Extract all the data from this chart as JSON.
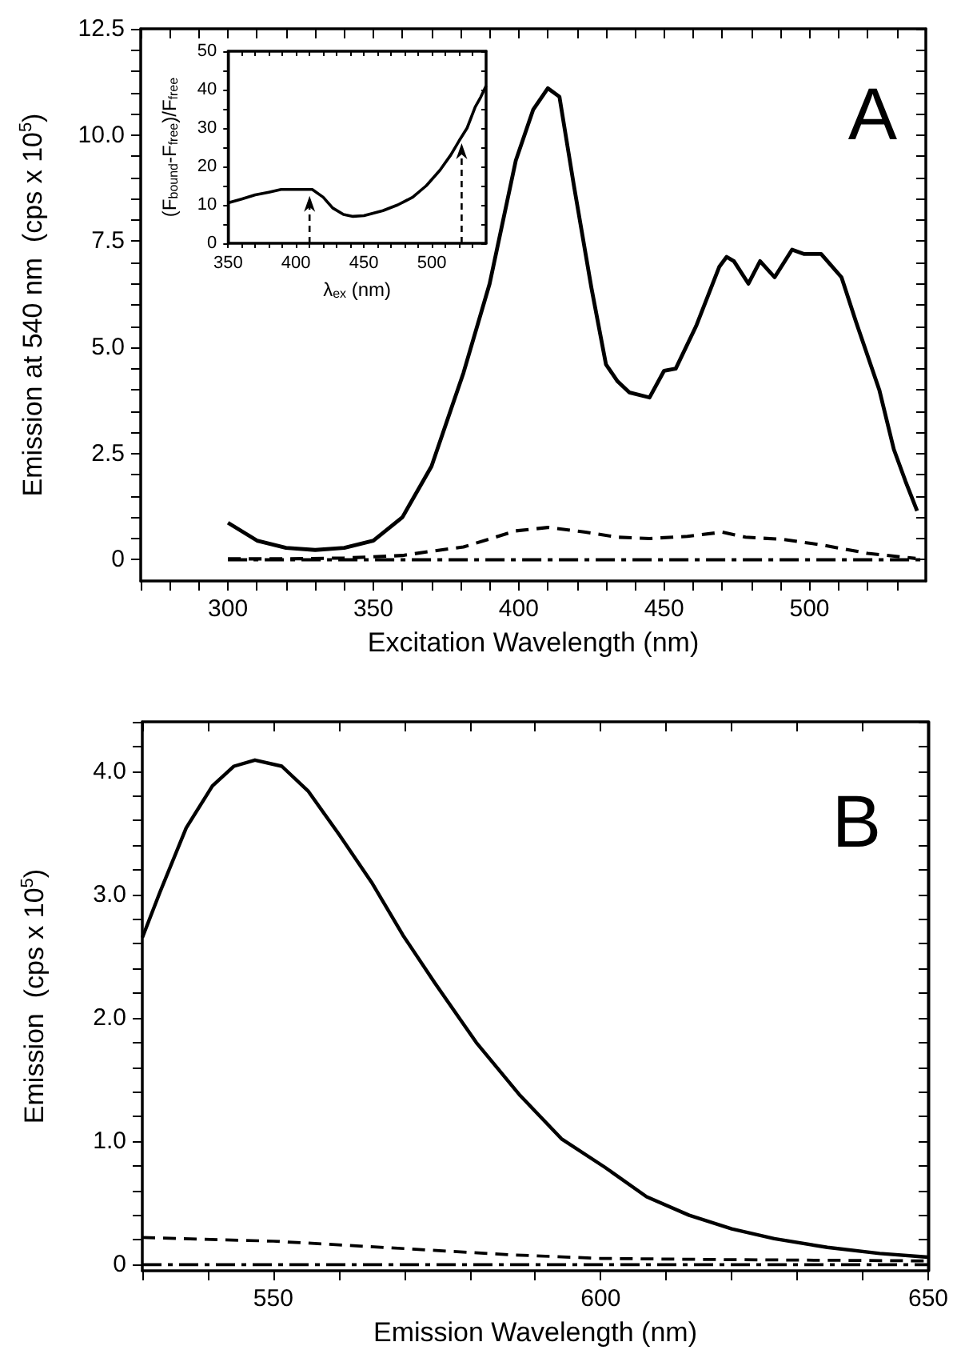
{
  "chart_data": [
    {
      "type": "line",
      "xlabel": "Excitation Wavelength (nm)",
      "ylabel": "Emission at 540 nm  (cps x 10$^{5}$)",
      "annotations": [
        "A"
      ],
      "marker": "none",
      "xlim": [
        270,
        540
      ],
      "ylim": [
        -0.5,
        12.5
      ],
      "xticks": [
        {
          "value": 270,
          "label": null
        },
        {
          "value": 280,
          "label": null
        },
        {
          "value": 290,
          "label": null
        },
        300,
        {
          "value": 310,
          "label": null
        },
        {
          "value": 320,
          "label": null
        },
        {
          "value": 330,
          "label": null
        },
        {
          "value": 340,
          "label": null
        },
        350,
        {
          "value": 360,
          "label": null
        },
        {
          "value": 370,
          "label": null
        },
        {
          "value": 380,
          "label": null
        },
        {
          "value": 390,
          "label": null
        },
        400,
        {
          "value": 410,
          "label": null
        },
        {
          "value": 420,
          "label": null
        },
        {
          "value": 430,
          "label": null
        },
        {
          "value": 440,
          "label": null
        },
        450,
        {
          "value": 460,
          "label": null
        },
        {
          "value": 470,
          "label": null
        },
        {
          "value": 480,
          "label": null
        },
        {
          "value": 490,
          "label": null
        },
        500,
        {
          "value": 510,
          "label": null
        },
        {
          "value": 520,
          "label": null
        },
        {
          "value": 530,
          "label": null
        }
      ],
      "yticks": [
        0,
        {
          "value": 0.5,
          "label": null
        },
        {
          "value": 1,
          "label": null
        },
        {
          "value": 1.5,
          "label": null
        },
        {
          "value": 2,
          "label": null
        },
        2.5,
        {
          "value": 3,
          "label": null
        },
        {
          "value": 3.5,
          "label": null
        },
        {
          "value": 4,
          "label": null
        },
        {
          "value": 4.5,
          "label": null
        },
        {
          "value": 5,
          "label": "5.0"
        },
        {
          "value": 5.5,
          "label": null
        },
        {
          "value": 6,
          "label": null
        },
        {
          "value": 6.5,
          "label": null
        },
        {
          "value": 7,
          "label": null
        },
        7.5,
        {
          "value": 8,
          "label": null
        },
        {
          "value": 8.5,
          "label": null
        },
        {
          "value": 9,
          "label": null
        },
        {
          "value": 9.5,
          "label": null
        },
        {
          "value": 10,
          "label": "10.0"
        },
        {
          "value": 10.5,
          "label": null
        },
        {
          "value": 11,
          "label": null
        },
        {
          "value": 11.5,
          "label": null
        },
        {
          "value": 12,
          "label": null
        },
        12.5
      ],
      "series": [
        {
          "color": "#000000",
          "line_style": "solid",
          "x": [
            300,
            310,
            320,
            330,
            340,
            350,
            360,
            370,
            381,
            390,
            399,
            405,
            410,
            414,
            419,
            425,
            430,
            434,
            438,
            445,
            450,
            454,
            461,
            469,
            471.5,
            474,
            479,
            483,
            488,
            494,
            498,
            504,
            511,
            516,
            524,
            529,
            533,
            537
          ],
          "values": [
            0.87,
            0.45,
            0.28,
            0.23,
            0.28,
            0.45,
            1.0,
            2.2,
            4.4,
            6.5,
            9.4,
            10.6,
            11.1,
            10.9,
            8.8,
            6.4,
            4.6,
            4.2,
            3.94,
            3.82,
            4.45,
            4.5,
            5.5,
            6.9,
            7.13,
            7.03,
            6.5,
            7.03,
            6.65,
            7.3,
            7.2,
            7.2,
            6.65,
            5.6,
            4.0,
            2.6,
            1.85,
            1.15
          ]
        },
        {
          "color": "#000000",
          "line_style": "dashed",
          "x": [
            300,
            320,
            340,
            360,
            370,
            381,
            399,
            410,
            423,
            434,
            445,
            458,
            470,
            478,
            491,
            505,
            520,
            536.5
          ],
          "values": [
            0.02,
            0.02,
            0.04,
            0.1,
            0.2,
            0.3,
            0.68,
            0.76,
            0.65,
            0.53,
            0.5,
            0.55,
            0.65,
            0.53,
            0.48,
            0.34,
            0.15,
            0.03
          ]
        },
        {
          "color": "#000000",
          "line_style": "dashdot",
          "x": [
            300,
            540
          ],
          "values": [
            0,
            0
          ]
        }
      ]
    },
    {
      "type": "line",
      "xlabel": "λ$_{ex}$ (nm)",
      "ylabel": "(F$_{bound}$-F$_{free}$)/F$_{free}$",
      "marker": "none",
      "xlim": [
        350,
        540
      ],
      "ylim": [
        0,
        50
      ],
      "xticks": [
        350,
        {
          "value": 360,
          "label": null
        },
        {
          "value": 370,
          "label": null
        },
        {
          "value": 380,
          "label": null
        },
        {
          "value": 390,
          "label": null
        },
        400,
        {
          "value": 410,
          "label": null
        },
        {
          "value": 420,
          "label": null
        },
        {
          "value": 430,
          "label": null
        },
        {
          "value": 440,
          "label": null
        },
        450,
        {
          "value": 460,
          "label": null
        },
        {
          "value": 470,
          "label": null
        },
        {
          "value": 480,
          "label": null
        },
        {
          "value": 490,
          "label": null
        },
        500,
        {
          "value": 510,
          "label": null
        },
        {
          "value": 520,
          "label": null
        },
        {
          "value": 530,
          "label": null
        }
      ],
      "yticks": [
        0,
        {
          "value": 5,
          "label": null
        },
        10,
        {
          "value": 15,
          "label": null
        },
        20,
        {
          "value": 25,
          "label": null
        },
        30,
        {
          "value": 35,
          "label": null
        },
        40,
        {
          "value": 45,
          "label": null
        },
        50
      ],
      "series": [
        {
          "color": "#000000",
          "line_style": "solid",
          "x": [
            350,
            360,
            370,
            380,
            389,
            400,
            412,
            420,
            427,
            435,
            442,
            450,
            464,
            475,
            486,
            496,
            506,
            514,
            520,
            526,
            532,
            536,
            540
          ],
          "values": [
            10.5,
            11.5,
            12.6,
            13.3,
            14,
            14,
            14,
            12,
            9.2,
            7.5,
            7,
            7.2,
            8.5,
            10,
            12,
            15,
            19,
            23,
            26.6,
            30,
            35.5,
            38,
            41
          ]
        }
      ],
      "ref_lines": [
        {
          "axis": "x",
          "value": 410,
          "line_style": "dashed",
          "color": "#000000"
        },
        {
          "axis": "x",
          "value": 522,
          "line_style": "dashed",
          "color": "#000000"
        }
      ]
    },
    {
      "type": "line",
      "xlabel": "Emission Wavelength (nm)",
      "ylabel": "Emission  (cps x 10$^{5}$)",
      "annotations": [
        "B"
      ],
      "marker": "none",
      "xlim": [
        530,
        650
      ],
      "ylim": [
        -0.05,
        4.4
      ],
      "xticks": [
        {
          "value": 530,
          "label": null
        },
        {
          "value": 540,
          "label": null
        },
        550,
        {
          "value": 560,
          "label": null
        },
        {
          "value": 570,
          "label": null
        },
        {
          "value": 580,
          "label": null
        },
        {
          "value": 590,
          "label": null
        },
        600,
        {
          "value": 610,
          "label": null
        },
        {
          "value": 620,
          "label": null
        },
        {
          "value": 630,
          "label": null
        },
        {
          "value": 640,
          "label": null
        },
        650
      ],
      "yticks": [
        0,
        {
          "value": 0.2,
          "label": null
        },
        {
          "value": 0.4,
          "label": null
        },
        {
          "value": 0.6,
          "label": null
        },
        {
          "value": 0.8,
          "label": null
        },
        {
          "value": 1,
          "label": "1.0"
        },
        {
          "value": 1.2,
          "label": null
        },
        {
          "value": 1.4,
          "label": null
        },
        {
          "value": 1.6,
          "label": null
        },
        {
          "value": 1.8,
          "label": null
        },
        {
          "value": 2,
          "label": "2.0"
        },
        {
          "value": 2.2,
          "label": null
        },
        {
          "value": 2.4,
          "label": null
        },
        {
          "value": 2.6,
          "label": null
        },
        {
          "value": 2.8,
          "label": null
        },
        {
          "value": 3,
          "label": "3.0"
        },
        {
          "value": 3.2,
          "label": null
        },
        {
          "value": 3.4,
          "label": null
        },
        {
          "value": 3.6,
          "label": null
        },
        {
          "value": 3.8,
          "label": null
        },
        {
          "value": 4,
          "label": "4.0"
        },
        {
          "value": 4.2,
          "label": null
        },
        {
          "value": 4.4,
          "label": null
        }
      ],
      "series": [
        {
          "color": "#000000",
          "line_style": "solid",
          "x": [
            530,
            532.7,
            536.7,
            540.7,
            544,
            547.2,
            551.3,
            555.3,
            560,
            565,
            569.8,
            574.7,
            581,
            587.7,
            594,
            600.6,
            607,
            613.5,
            620,
            626.5,
            634.6,
            642.6,
            650
          ],
          "values": [
            2.65,
            3.02,
            3.54,
            3.88,
            4.04,
            4.09,
            4.04,
            3.84,
            3.49,
            3.1,
            2.67,
            2.28,
            1.8,
            1.37,
            1.02,
            0.79,
            0.55,
            0.4,
            0.29,
            0.21,
            0.14,
            0.09,
            0.06
          ]
        },
        {
          "color": "#000000",
          "line_style": "dashed",
          "x": [
            530,
            550,
            560,
            570,
            586,
            600,
            620,
            650
          ],
          "values": [
            0.22,
            0.19,
            0.16,
            0.13,
            0.08,
            0.05,
            0.04,
            0.03
          ]
        },
        {
          "color": "#000000",
          "line_style": "dashdot",
          "x": [
            530,
            650
          ],
          "values": [
            0,
            0
          ]
        }
      ]
    }
  ]
}
